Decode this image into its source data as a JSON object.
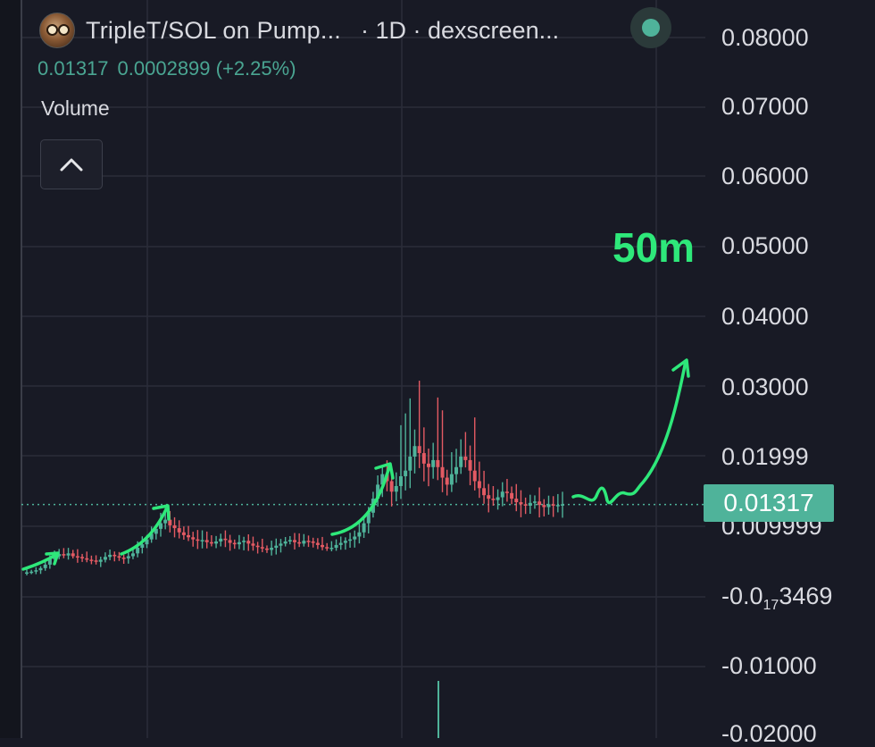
{
  "header": {
    "title": "TripleT/SOL on Pump...",
    "interval": "· 1D · dexscreen...",
    "price": "0.01317",
    "change": "0.0002899 (+2.25%)",
    "status_color": "#4fb39a"
  },
  "volume": {
    "label": "Volume",
    "toggle_icon": "chevron-up-icon"
  },
  "annotation": {
    "text": "50m",
    "color": "#2ee87a"
  },
  "y_axis": {
    "ticks": [
      "0.08000",
      "0.07000",
      "0.06000",
      "0.05000",
      "0.04000",
      "0.03000",
      "0.01999",
      "0.009999",
      "-0.01000",
      "-0.02000"
    ],
    "special_tick": {
      "main": "-0.0",
      "sub": "17",
      "rest": "3469"
    },
    "current_price": "0.01317"
  },
  "colors": {
    "up": "#4fb39a",
    "down": "#e35a63",
    "background": "#181a25",
    "grid": "#2a2d3a",
    "accent": "#2ee87a"
  },
  "chart_data": {
    "type": "candlestick",
    "interval": "1D",
    "pair": "TripleT/SOL",
    "ylim": [
      -0.02,
      0.08
    ],
    "current_price": 0.01317,
    "close_series": [
      0.0035,
      0.0036,
      0.0038,
      0.0041,
      0.0046,
      0.0054,
      0.0058,
      0.0061,
      0.0059,
      0.0062,
      0.0058,
      0.0057,
      0.0055,
      0.0053,
      0.0052,
      0.005,
      0.0053,
      0.0057,
      0.006,
      0.0058,
      0.0056,
      0.0055,
      0.0058,
      0.0062,
      0.007,
      0.0075,
      0.0082,
      0.009,
      0.0097,
      0.0105,
      0.011,
      0.0102,
      0.0098,
      0.0092,
      0.0088,
      0.0085,
      0.0082,
      0.008,
      0.0081,
      0.0078,
      0.0076,
      0.0079,
      0.0083,
      0.0081,
      0.0077,
      0.0075,
      0.0078,
      0.008,
      0.0076,
      0.0073,
      0.0071,
      0.0069,
      0.0067,
      0.007,
      0.0073,
      0.0076,
      0.0079,
      0.0081,
      0.0078,
      0.0076,
      0.008,
      0.0079,
      0.0077,
      0.0074,
      0.0071,
      0.0069,
      0.007,
      0.0074,
      0.0077,
      0.008,
      0.0082,
      0.0086,
      0.0092,
      0.0105,
      0.012,
      0.014,
      0.016,
      0.0175,
      0.0165,
      0.015,
      0.0158,
      0.0172,
      0.018,
      0.02,
      0.0215,
      0.0205,
      0.019,
      0.0185,
      0.0195,
      0.0185,
      0.017,
      0.016,
      0.0175,
      0.0185,
      0.02,
      0.0195,
      0.018,
      0.0165,
      0.0155,
      0.0145,
      0.014,
      0.0138,
      0.0142,
      0.015,
      0.0148,
      0.014,
      0.0135,
      0.0132,
      0.013,
      0.0134,
      0.0136,
      0.0131,
      0.0128,
      0.0132,
      0.013,
      0.0131,
      0.0132
    ]
  }
}
